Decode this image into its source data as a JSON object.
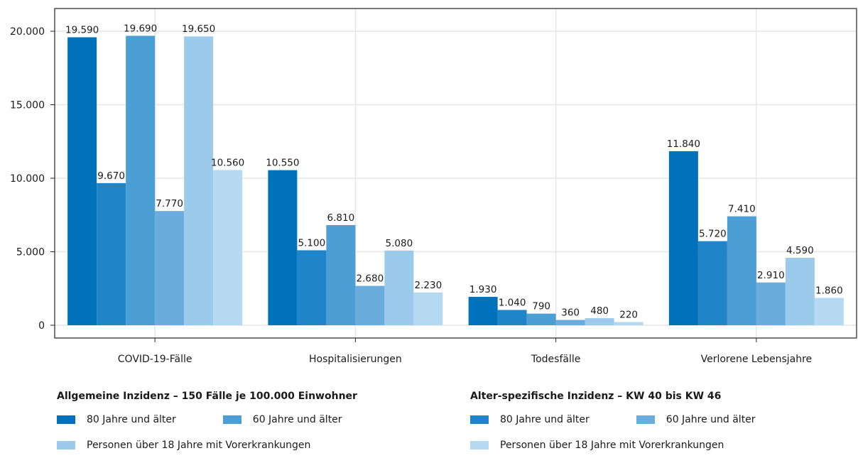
{
  "chart_data": {
    "type": "bar",
    "categories": [
      "COVID-19-Fälle",
      "Hospitalisierungen",
      "Todesfälle",
      "Verlorene Lebensjahre"
    ],
    "ylim": [
      0,
      21000
    ],
    "yticks": [
      0,
      5000,
      10000,
      15000,
      20000
    ],
    "ytick_labels": [
      "0",
      "5.000",
      "10.000",
      "15.000",
      "20.000"
    ],
    "grid": true,
    "legend_position": "bottom",
    "series": [
      {
        "group": 0,
        "color": "#0071bb",
        "values": [
          19590,
          10550,
          1930,
          11840
        ],
        "labels": [
          "19.590",
          "10.550",
          "1.930",
          "11.840"
        ]
      },
      {
        "group": 1,
        "color": "#1f84c8",
        "values": [
          9670,
          5100,
          1040,
          5720
        ],
        "labels": [
          "9.670",
          "5.100",
          "1.040",
          "5.720"
        ]
      },
      {
        "group": 0,
        "color": "#4b9fd5",
        "values": [
          19690,
          6810,
          790,
          7410
        ],
        "labels": [
          "19.690",
          "6.810",
          "790",
          "7.410"
        ]
      },
      {
        "group": 1,
        "color": "#6aacdb",
        "values": [
          7770,
          2680,
          360,
          2910
        ],
        "labels": [
          "7.770",
          "2.680",
          "360",
          "2.910"
        ]
      },
      {
        "group": 0,
        "color": "#9ccaea",
        "values": [
          19650,
          5080,
          480,
          4590
        ],
        "labels": [
          "19.650",
          "5.080",
          "480",
          "4.590"
        ]
      },
      {
        "group": 1,
        "color": "#b5d9f0",
        "values": [
          10560,
          2230,
          220,
          1860
        ],
        "labels": [
          "10.560",
          "2.230",
          "220",
          "1.860"
        ]
      }
    ]
  },
  "legend": {
    "left": {
      "title": "Allgemeine Inzidenz – 150 Fälle je 100.000 Einwohner",
      "items": [
        {
          "label": "80 Jahre und älter",
          "color": "#0071bb"
        },
        {
          "label": "60 Jahre und älter",
          "color": "#4b9fd5"
        },
        {
          "label": "Personen über 18 Jahre mit Vorerkrankungen",
          "color": "#9ccaea"
        }
      ]
    },
    "right": {
      "title": "Alter-spezifische Inzidenz – KW 40 bis KW 46",
      "items": [
        {
          "label": "80 Jahre und älter",
          "color": "#1f84c8"
        },
        {
          "label": "60 Jahre und älter",
          "color": "#6aacdb"
        },
        {
          "label": "Personen über 18 Jahre mit Vorerkrankungen",
          "color": "#b5d9f0"
        }
      ]
    }
  }
}
